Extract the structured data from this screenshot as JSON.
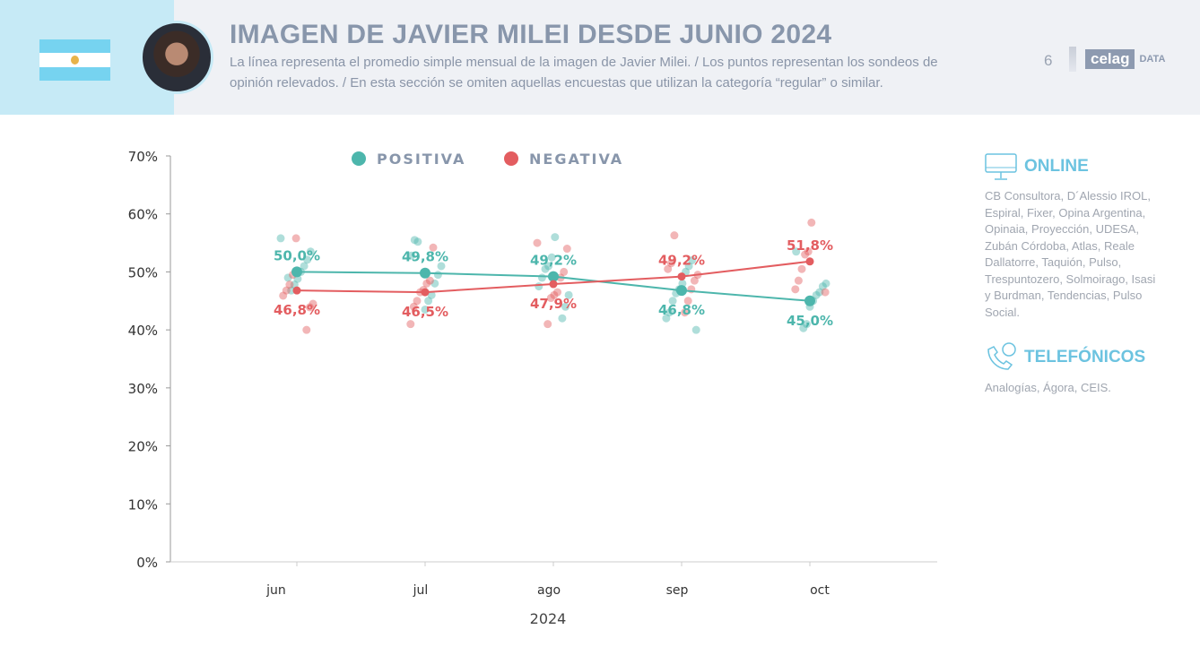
{
  "header": {
    "title": "IMAGEN DE JAVIER MILEI DESDE JUNIO 2024",
    "subtitle": "La línea representa el promedio simple mensual de la imagen de Javier Milei. / Los puntos representan los sondeos de opinión relevados. / En esta sección se omiten aquellas encuestas que utilizan la categoría “regular” o similar.",
    "page_number": "6",
    "logo_text": "celag",
    "logo_suffix": "DATA"
  },
  "colors": {
    "positiva": "#4db6ac",
    "negativa": "#e35d60",
    "axis": "#999999"
  },
  "chart_data": {
    "type": "line",
    "categories": [
      "jun",
      "jul",
      "ago",
      "sep",
      "oct"
    ],
    "xlabel": "2024",
    "ylim": [
      0,
      70
    ],
    "yticks": [
      "0%",
      "10%",
      "20%",
      "30%",
      "40%",
      "50%",
      "60%",
      "70%"
    ],
    "legend_position": "top",
    "series": [
      {
        "name": "POSITIVA",
        "values": [
          50.0,
          49.8,
          49.2,
          46.8,
          45.0
        ],
        "labels": [
          "50,0%",
          "49,8%",
          "49,2%",
          "46,8%",
          "45,0%"
        ],
        "surveys": [
          [
            55.8,
            53.5,
            52.1,
            51,
            50,
            48.8,
            47.8,
            46.8,
            49
          ],
          [
            55.2,
            55.5,
            52.8,
            51,
            49.5,
            48,
            46,
            45,
            43.5
          ],
          [
            56,
            52.5,
            51,
            50.5,
            49,
            47.5,
            46,
            44,
            42
          ],
          [
            52,
            51,
            50,
            48,
            47,
            46.3,
            45,
            43,
            42,
            40
          ],
          [
            53.5,
            48,
            47.5,
            46.5,
            46,
            45,
            44,
            41,
            40.3
          ]
        ]
      },
      {
        "name": "NEGATIVA",
        "values": [
          46.8,
          46.5,
          47.9,
          49.2,
          51.8
        ],
        "labels": [
          "46,8%",
          "46,5%",
          "47,9%",
          "49,2%",
          "51,8%"
        ],
        "surveys": [
          [
            55.8,
            49.5,
            47.8,
            46.8,
            45.9,
            44.5,
            43.9,
            40
          ],
          [
            54.2,
            48.5,
            48,
            46.9,
            46.5,
            45,
            44,
            41
          ],
          [
            55,
            54,
            50,
            49,
            46.5,
            46,
            45.5,
            41
          ],
          [
            56.3,
            51.5,
            50.5,
            49.5,
            48.5,
            47,
            45,
            43
          ],
          [
            58.5,
            53.5,
            53,
            50.5,
            48.5,
            47,
            46.5
          ]
        ]
      }
    ]
  },
  "sidebar": {
    "online": {
      "title": "ONLINE",
      "text": "CB Consultora, D´Alessio IROL, Espiral, Fixer, Opina Argentina, Opinaia, Proyección, UDESA, Zubán Córdoba, Atlas, Reale Dallatorre, Taquión, Pulso, Trespuntozero, Solmoirago, Isasi y Burdman, Tendencias, Pulso Social."
    },
    "telefonicos": {
      "title": "TELEFÓNICOS",
      "text": "Analogías, Ágora, CEIS."
    }
  }
}
